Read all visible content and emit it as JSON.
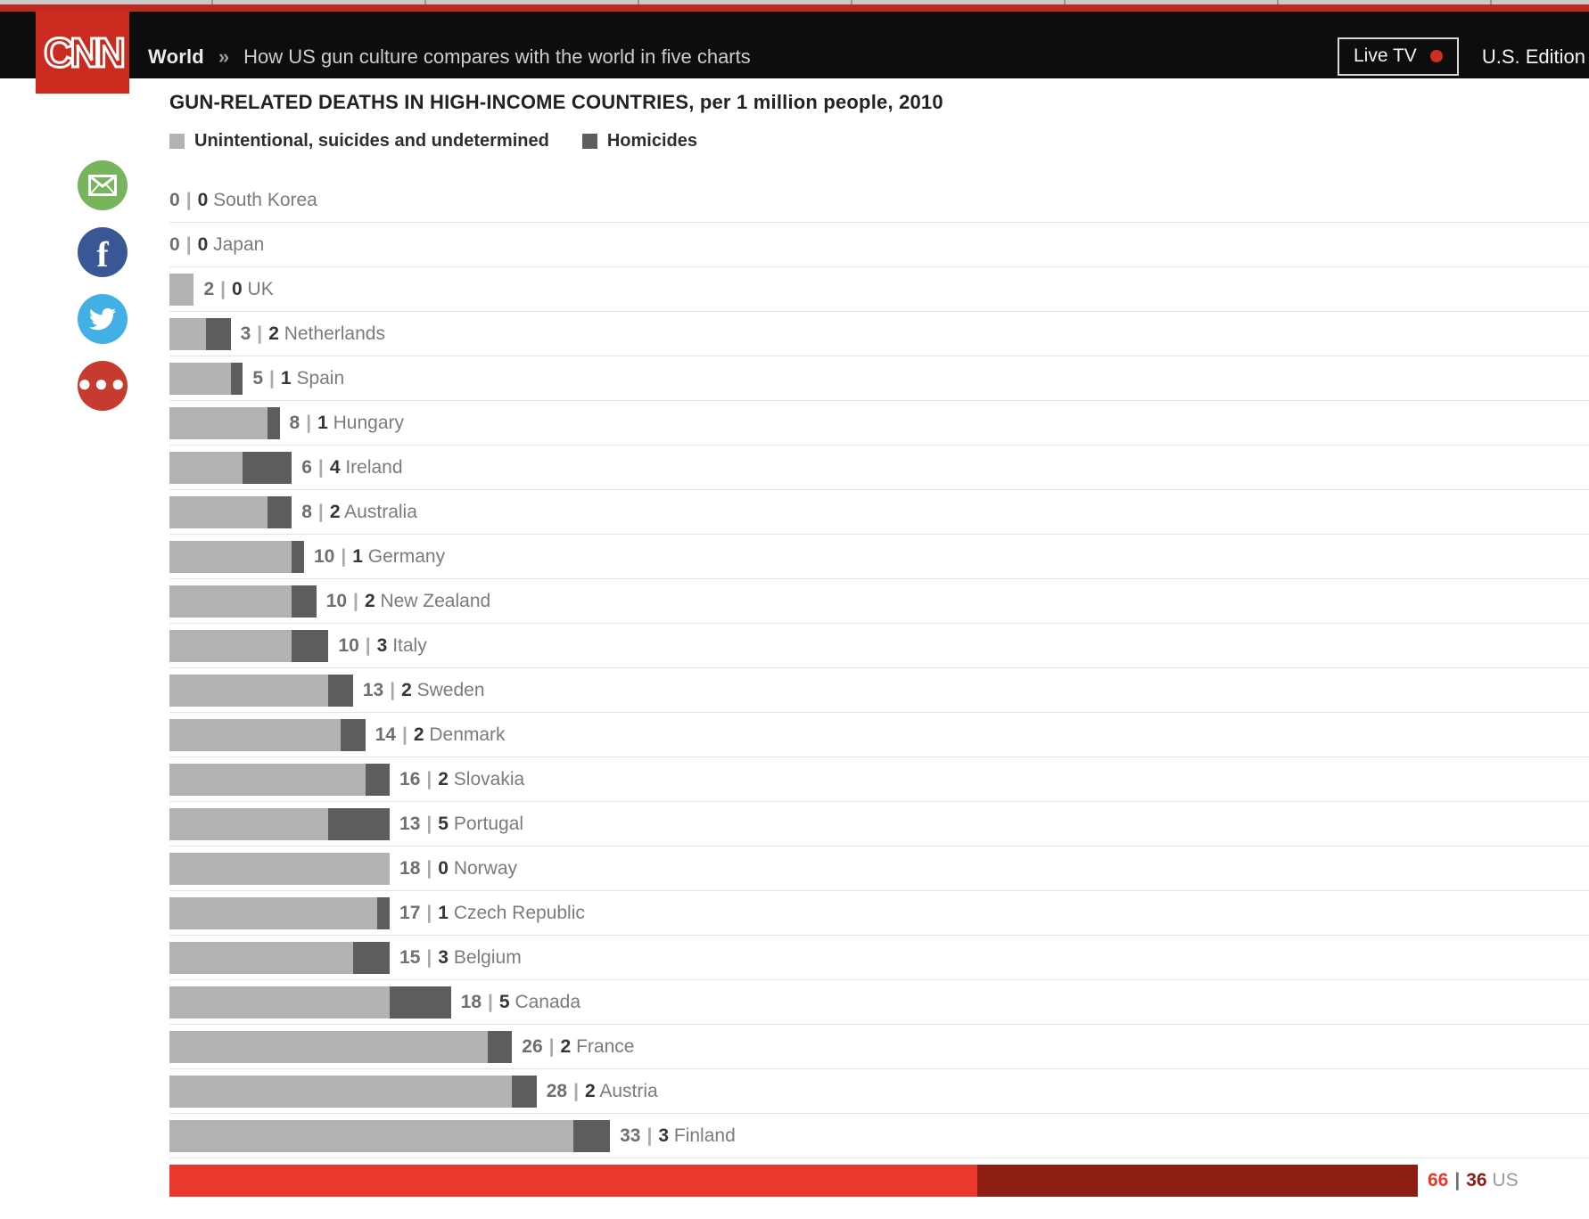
{
  "header": {
    "logo_text": "CNN",
    "brand_red": "#cb2b1f",
    "top_strip_red": "#bf2a1e",
    "section": "World",
    "separator": "»",
    "article_title": "How US gun culture compares with the world in five charts",
    "live_tv_label": "Live TV",
    "live_dot_color": "#cc2f24",
    "edition_label": "U.S. Edition"
  },
  "share": [
    {
      "name": "email-icon",
      "color": "#76b55c"
    },
    {
      "name": "facebook-icon",
      "color": "#3a5795"
    },
    {
      "name": "twitter-icon",
      "color": "#42b0e5"
    },
    {
      "name": "more-icon",
      "color": "#c63b2e"
    }
  ],
  "chart_data": {
    "type": "bar",
    "orientation": "horizontal",
    "title": "GUN-RELATED DEATHS IN HIGH-INCOME COUNTRIES, per 1 million people, 2010",
    "legend": [
      {
        "label": "Unintentional, suicides and undetermined",
        "color": "#b2b2b2"
      },
      {
        "label": "Homicides",
        "color": "#5d5d5d"
      }
    ],
    "legend_position": "top",
    "grid": false,
    "xlim": [
      0,
      102
    ],
    "categories": [
      "South Korea",
      "Japan",
      "UK",
      "Netherlands",
      "Spain",
      "Hungary",
      "Ireland",
      "Australia",
      "Germany",
      "New Zealand",
      "Italy",
      "Sweden",
      "Denmark",
      "Slovakia",
      "Portugal",
      "Norway",
      "Czech Republic",
      "Belgium",
      "Canada",
      "France",
      "Austria",
      "Finland",
      "US"
    ],
    "series": [
      {
        "name": "Unintentional, suicides and undetermined",
        "values": [
          0,
          0,
          2,
          3,
          5,
          8,
          6,
          8,
          10,
          10,
          10,
          13,
          14,
          16,
          13,
          18,
          17,
          15,
          18,
          26,
          28,
          33,
          66
        ]
      },
      {
        "name": "Homicides",
        "values": [
          0,
          0,
          0,
          2,
          1,
          1,
          4,
          2,
          1,
          2,
          3,
          2,
          2,
          2,
          5,
          0,
          1,
          3,
          5,
          2,
          2,
          3,
          36
        ]
      }
    ],
    "value_label_format": "{v1} | {v2} {category}",
    "text_colors": {
      "value1": "#6f6f6f",
      "pipe": "#a9a9a9",
      "value2": "#363636",
      "category": "#7b7b7b"
    },
    "highlight": {
      "category": "US",
      "bar_colors": [
        "#e8392c",
        "#8e1e14"
      ],
      "value1_color": "#e8392c",
      "value2_color": "#8e1e14",
      "pipe_color": "#6e6e6e",
      "category_color": "#9a9a9a"
    }
  }
}
